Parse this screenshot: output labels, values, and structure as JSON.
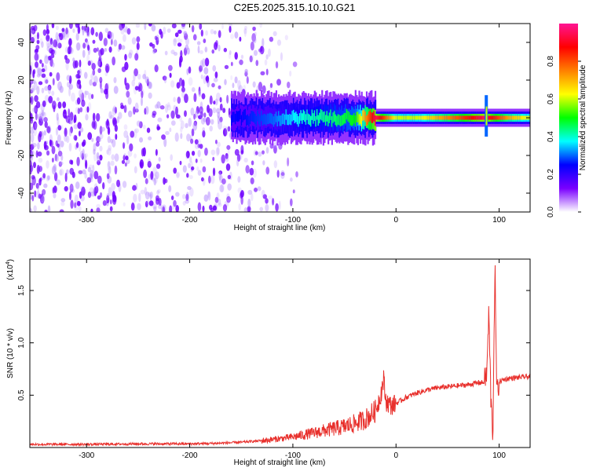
{
  "title": "C2E5.2025.315.10.10.G21",
  "chart_data": [
    {
      "type": "heatmap",
      "title": "C2E5.2025.315.10.10.G21",
      "xlabel": "Height of straight line (km)",
      "ylabel": "Frequency (Hz)",
      "xlim": [
        -355,
        130
      ],
      "ylim": [
        -50,
        50
      ],
      "x_ticks": [
        -300,
        -200,
        -100,
        0,
        100
      ],
      "y_ticks": [
        -40,
        -20,
        0,
        20,
        40
      ],
      "colorbar": {
        "label": "Normalized spectral amplitude",
        "range": [
          0,
          1
        ],
        "ticks": [
          0.0,
          0.2,
          0.4,
          0.6,
          0.8
        ],
        "colors": [
          "#ffffff",
          "#7a00ff",
          "#0000ff",
          "#00ffff",
          "#00ff00",
          "#ffff00",
          "#ff8000",
          "#ff0000",
          "#ff1493"
        ]
      },
      "ridge": [
        {
          "x": -150,
          "amplitude": 0.25
        },
        {
          "x": -120,
          "amplitude": 0.3
        },
        {
          "x": -90,
          "amplitude": 0.4
        },
        {
          "x": -60,
          "amplitude": 0.45
        },
        {
          "x": -40,
          "amplitude": 0.5
        },
        {
          "x": -20,
          "amplitude": 0.95
        },
        {
          "x": 0,
          "amplitude": 0.6
        },
        {
          "x": 20,
          "amplitude": 0.6
        },
        {
          "x": 40,
          "amplitude": 0.7
        },
        {
          "x": 60,
          "amplitude": 0.8
        },
        {
          "x": 85,
          "amplitude": 0.95
        },
        {
          "x": 95,
          "amplitude": 0.85
        },
        {
          "x": 110,
          "amplitude": 0.7
        },
        {
          "x": 130,
          "amplitude": 0.6
        }
      ]
    },
    {
      "type": "line",
      "xlabel": "Height of straight line (km)",
      "ylabel": "SNR (10 * v/v)",
      "y_multiplier": "(x10",
      "y_multiplier_exp": "4",
      "xlim": [
        -355,
        130
      ],
      "ylim": [
        0,
        1.8
      ],
      "x_ticks": [
        -300,
        -200,
        -100,
        0,
        100
      ],
      "y_ticks": [
        0.5,
        1.0,
        1.5
      ],
      "y_tick_labels": [
        "0.5",
        "1.0",
        "1.5"
      ],
      "color": "#e8302c",
      "series": [
        {
          "x": [
            -355,
            -300,
            -250,
            -200,
            -175,
            -150,
            -125,
            -100,
            -90,
            -80,
            -70,
            -60,
            -50,
            -40,
            -30,
            -20,
            -15,
            -12,
            -10,
            -5,
            0,
            10,
            20,
            30,
            40,
            50,
            60,
            70,
            80,
            85,
            88,
            90,
            92,
            94,
            95,
            96,
            97,
            98,
            100,
            105,
            110,
            120,
            130
          ],
          "y": [
            0.03,
            0.03,
            0.035,
            0.035,
            0.04,
            0.05,
            0.07,
            0.1,
            0.12,
            0.14,
            0.16,
            0.18,
            0.2,
            0.23,
            0.27,
            0.35,
            0.5,
            0.65,
            0.45,
            0.4,
            0.42,
            0.48,
            0.52,
            0.55,
            0.57,
            0.58,
            0.59,
            0.6,
            0.62,
            0.62,
            0.7,
            1.3,
            0.45,
            0.12,
            1.1,
            1.75,
            0.9,
            0.5,
            0.63,
            0.65,
            0.66,
            0.67,
            0.68
          ]
        }
      ]
    }
  ]
}
